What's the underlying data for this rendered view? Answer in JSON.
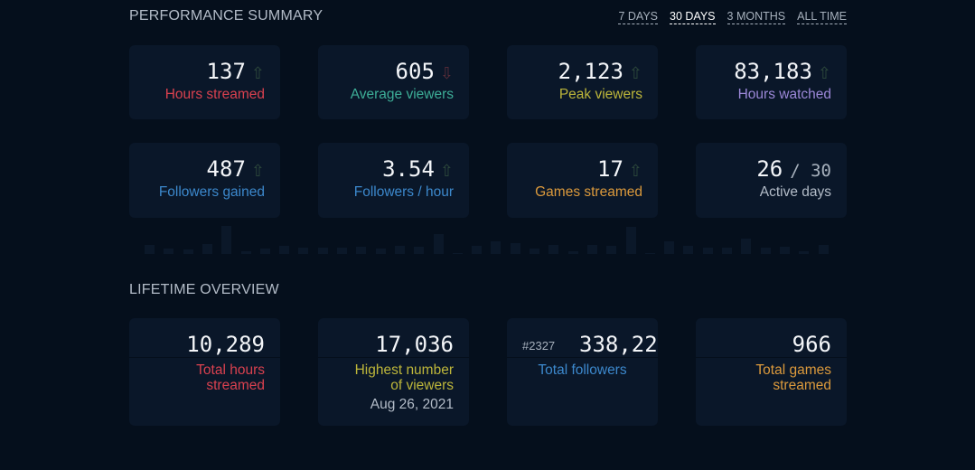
{
  "performance": {
    "title": "PERFORMANCE SUMMARY",
    "tabs": [
      {
        "label": "7 DAYS",
        "active": false
      },
      {
        "label": "30 DAYS",
        "active": true
      },
      {
        "label": "3 MONTHS",
        "active": false
      },
      {
        "label": "ALL TIME",
        "active": false
      }
    ],
    "stats": [
      {
        "value": "137",
        "trend": "up",
        "label": "Hours streamed",
        "color": "#d9414f"
      },
      {
        "value": "605",
        "trend": "down",
        "label": "Average viewers",
        "color": "#3dae97"
      },
      {
        "value": "2,123",
        "trend": "up",
        "label": "Peak viewers",
        "color": "#bdb63a"
      },
      {
        "value": "83,183",
        "trend": "up",
        "label": "Hours watched",
        "color": "#9c88d8"
      },
      {
        "value": "487",
        "trend": "up",
        "label": "Followers gained",
        "color": "#3c88cc"
      },
      {
        "value": "3.54",
        "trend": "up",
        "label": "Followers / hour",
        "color": "#3c88cc"
      },
      {
        "value": "17",
        "trend": "up",
        "label": "Games streamed",
        "color": "#dc9a3c"
      },
      {
        "value": "26",
        "of": "/ 30",
        "trend": "",
        "label": "Active days",
        "color": "#b3bcc8"
      }
    ],
    "arrows": {
      "up": "⇧",
      "down": "⇩"
    },
    "daily_activity": [
      15,
      10,
      7,
      17,
      48,
      4,
      10,
      14,
      11,
      11,
      11,
      12,
      9,
      14,
      12,
      34,
      1,
      14,
      22,
      19,
      9,
      15,
      4,
      16,
      14,
      46,
      2,
      22,
      14,
      11,
      11,
      27,
      11,
      12,
      5,
      16
    ]
  },
  "lifetime": {
    "title": "LIFETIME OVERVIEW",
    "stats": [
      {
        "value": "10,289",
        "label1": "Total hours",
        "label2": "streamed",
        "color": "#d9414f"
      },
      {
        "value": "17,036",
        "label1": "Highest number",
        "label2": "of viewers",
        "sub": "Aug 26, 2021",
        "color": "#bdb63a"
      },
      {
        "value": "338,22",
        "rank": "#2327",
        "label1": "Total followers",
        "label2": "",
        "color": "#3c88cc"
      },
      {
        "value": "966",
        "label1": "Total games",
        "label2": "streamed",
        "color": "#dc9a3c"
      }
    ]
  }
}
